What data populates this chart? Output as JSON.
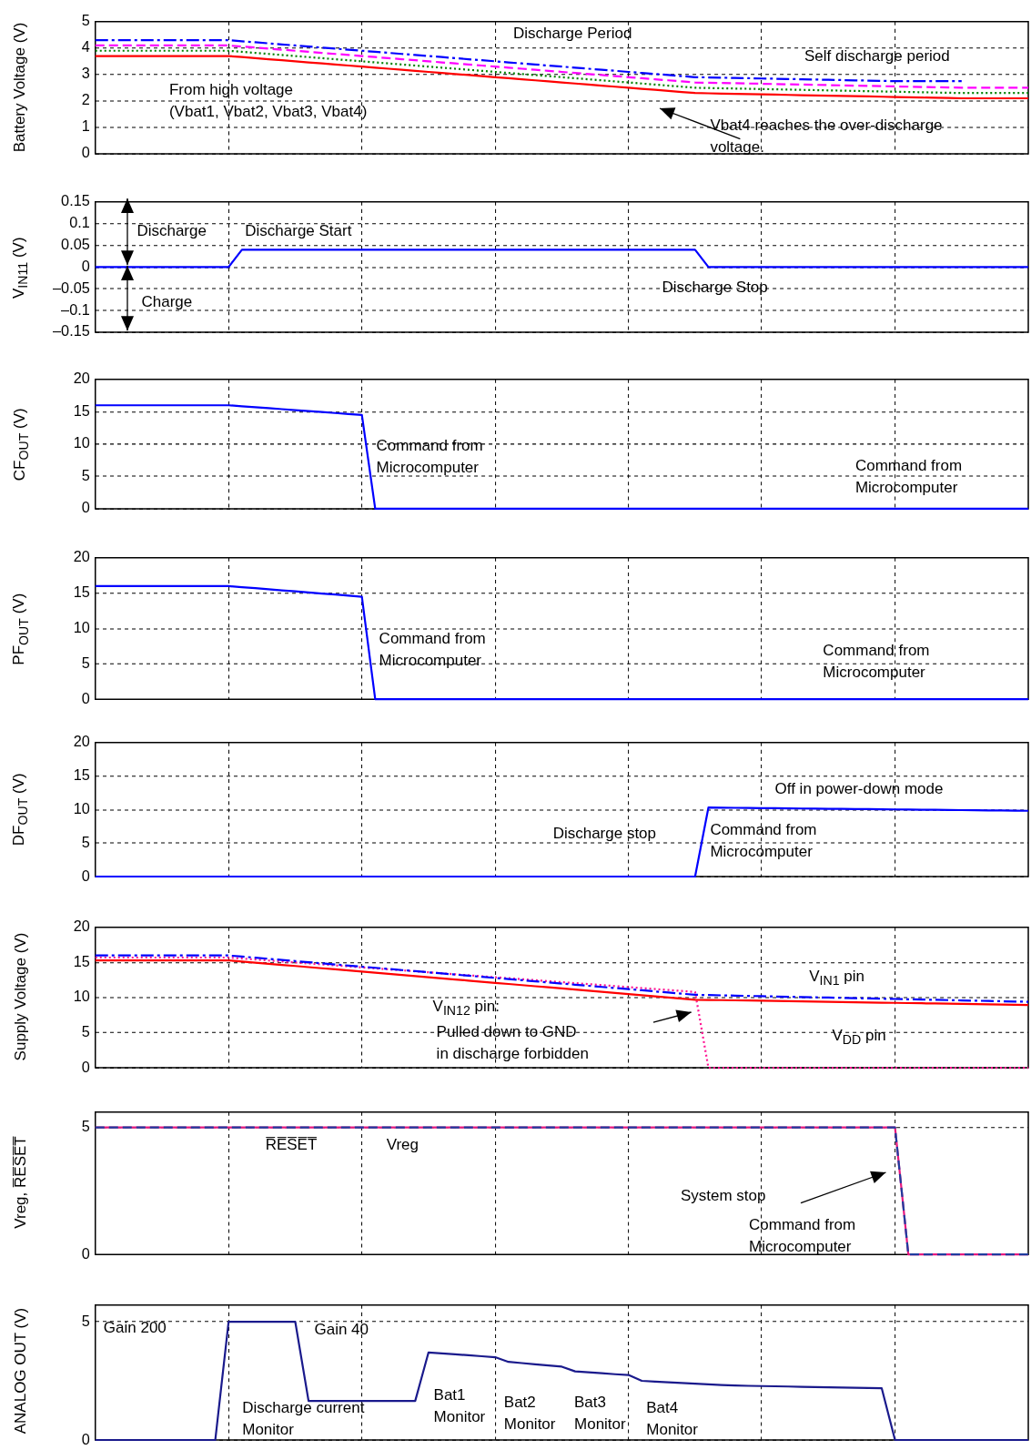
{
  "chart_data": [
    {
      "type": "line",
      "ylabel": "Battery Voltage (V)",
      "ylim": [
        0,
        5
      ],
      "yticks": [
        0,
        1,
        2,
        3,
        4,
        5
      ],
      "grid": true,
      "tick_labels": "y",
      "categories": [
        null,
        null,
        null,
        null,
        null,
        null,
        null,
        null,
        null,
        null,
        null,
        null,
        null,
        null,
        null,
        null,
        null,
        null,
        null,
        null,
        null,
        null,
        null,
        null,
        null,
        null,
        null,
        null,
        null,
        null,
        null,
        null,
        null,
        null,
        null,
        null,
        null,
        null,
        null,
        null,
        null,
        null,
        null,
        null,
        null,
        null,
        null,
        null,
        null,
        null,
        null,
        null,
        null,
        null,
        null,
        null,
        null,
        null,
        null,
        null,
        null,
        null,
        null,
        null,
        null,
        null,
        null,
        null,
        null,
        null,
        null
      ],
      "series": [
        {
          "color": "#0000ff",
          "line_style": "dashdot",
          "values": [
            4.3,
            4.3,
            4.3,
            4.3,
            4.3,
            4.3,
            4.3,
            4.3,
            4.3,
            4.3,
            4.3,
            4.26,
            4.22,
            4.18,
            4.14,
            4.1,
            4.06,
            4.02,
            3.98,
            3.94,
            3.9,
            3.86,
            3.82,
            3.78,
            3.74,
            3.7,
            3.66,
            3.62,
            3.58,
            3.54,
            3.5,
            3.46,
            3.42,
            3.38,
            3.34,
            3.3,
            3.26,
            3.22,
            3.18,
            3.14,
            3.1,
            3.06,
            3.02,
            2.98,
            2.94,
            2.9,
            2.89,
            2.88,
            2.87,
            2.86,
            2.85,
            2.84,
            2.83,
            2.82,
            2.81,
            2.8,
            2.79,
            2.78,
            2.77,
            2.76,
            2.75,
            2.75,
            2.75,
            2.75,
            2.75,
            2.75,
            null,
            null,
            null,
            null,
            null
          ]
        },
        {
          "color": "#ff00ff",
          "line_style": "dashed",
          "values": [
            4.1,
            4.1,
            4.1,
            4.1,
            4.1,
            4.1,
            4.1,
            4.1,
            4.1,
            4.1,
            4.1,
            4.06,
            4.02,
            3.98,
            3.94,
            3.9,
            3.86,
            3.82,
            3.78,
            3.74,
            3.7,
            3.66,
            3.62,
            3.58,
            3.54,
            3.5,
            3.46,
            3.42,
            3.38,
            3.34,
            3.3,
            3.26,
            3.22,
            3.18,
            3.14,
            3.1,
            3.06,
            3.02,
            2.98,
            2.94,
            2.9,
            2.86,
            2.82,
            2.78,
            2.74,
            2.7,
            2.69,
            2.68,
            2.67,
            2.66,
            2.65,
            2.64,
            2.63,
            2.62,
            2.61,
            2.6,
            2.59,
            2.58,
            2.57,
            2.56,
            2.55,
            2.54,
            2.53,
            2.52,
            2.51,
            2.5,
            2.5,
            2.5,
            2.5,
            2.5,
            2.5
          ]
        },
        {
          "color": "#008000",
          "line_style": "dotted",
          "values": [
            3.9,
            3.9,
            3.9,
            3.9,
            3.9,
            3.9,
            3.9,
            3.9,
            3.9,
            3.9,
            3.9,
            3.86,
            3.82,
            3.78,
            3.74,
            3.7,
            3.66,
            3.62,
            3.58,
            3.54,
            3.5,
            3.46,
            3.42,
            3.38,
            3.34,
            3.3,
            3.26,
            3.22,
            3.18,
            3.14,
            3.1,
            3.06,
            3.02,
            2.98,
            2.94,
            2.9,
            2.86,
            2.82,
            2.78,
            2.74,
            2.7,
            2.66,
            2.62,
            2.58,
            2.54,
            2.5,
            2.49,
            2.48,
            2.47,
            2.46,
            2.45,
            2.44,
            2.43,
            2.42,
            2.41,
            2.4,
            2.39,
            2.38,
            2.37,
            2.36,
            2.35,
            2.34,
            2.33,
            2.32,
            2.31,
            2.3,
            2.3,
            2.3,
            2.3,
            2.3,
            2.3
          ]
        },
        {
          "color": "#ff0000",
          "line_style": "solid",
          "values": [
            3.7,
            3.7,
            3.7,
            3.7,
            3.7,
            3.7,
            3.7,
            3.7,
            3.7,
            3.7,
            3.7,
            3.66,
            3.62,
            3.58,
            3.54,
            3.5,
            3.46,
            3.42,
            3.38,
            3.34,
            3.3,
            3.26,
            3.22,
            3.18,
            3.14,
            3.1,
            3.06,
            3.02,
            2.98,
            2.94,
            2.9,
            2.86,
            2.82,
            2.78,
            2.74,
            2.7,
            2.66,
            2.62,
            2.58,
            2.54,
            2.5,
            2.46,
            2.42,
            2.38,
            2.34,
            2.3,
            2.29,
            2.28,
            2.27,
            2.26,
            2.25,
            2.24,
            2.23,
            2.22,
            2.21,
            2.2,
            2.19,
            2.18,
            2.17,
            2.16,
            2.15,
            2.14,
            2.13,
            2.12,
            2.11,
            2.1,
            2.1,
            2.1,
            2.1,
            2.1,
            2.1
          ]
        }
      ],
      "annotations": [
        "Discharge Period",
        "Self discharge period",
        "From high voltage\n(Vbat1, Vbat2, Vbat3, Vbat4)",
        "Vbat4 reaches the over-discharge\nvoltage."
      ]
    },
    {
      "type": "line",
      "ylabel": "V$_{IN11}$ (V)",
      "ylim": [
        -0.15,
        0.15
      ],
      "yticks": [
        {
          "value": -0.15,
          "label": "–0.15"
        },
        {
          "value": -0.1,
          "label": "–0.1"
        },
        {
          "value": -0.05,
          "label": "–0.05"
        },
        0,
        0.05,
        0.1,
        0.15
      ],
      "grid": true,
      "tick_labels": "y",
      "categories": [
        null,
        null,
        null,
        null,
        null,
        null,
        null,
        null,
        null,
        null,
        null,
        null,
        null,
        null,
        null,
        null,
        null,
        null,
        null,
        null,
        null,
        null,
        null,
        null,
        null,
        null,
        null,
        null,
        null,
        null,
        null,
        null,
        null,
        null,
        null,
        null,
        null,
        null,
        null,
        null,
        null,
        null,
        null,
        null,
        null,
        null,
        null,
        null,
        null,
        null,
        null,
        null,
        null,
        null,
        null,
        null,
        null,
        null,
        null,
        null,
        null,
        null,
        null,
        null,
        null,
        null,
        null,
        null,
        null,
        null,
        null
      ],
      "series": [
        {
          "color": "#0000ff",
          "line_style": "solid",
          "values": [
            0,
            0,
            0,
            0,
            0,
            0,
            0,
            0,
            0,
            0,
            0,
            0.04,
            0.04,
            0.04,
            0.04,
            0.04,
            0.04,
            0.04,
            0.04,
            0.04,
            0.04,
            0.04,
            0.04,
            0.04,
            0.04,
            0.04,
            0.04,
            0.04,
            0.04,
            0.04,
            0.04,
            0.04,
            0.04,
            0.04,
            0.04,
            0.04,
            0.04,
            0.04,
            0.04,
            0.04,
            0.04,
            0.04,
            0.04,
            0.04,
            0.04,
            0.04,
            0,
            0,
            0,
            0,
            0,
            0,
            0,
            0,
            0,
            0,
            0,
            0,
            0,
            0,
            0,
            0,
            0,
            0,
            0,
            0,
            0,
            0,
            0,
            0,
            0
          ]
        }
      ],
      "annotations": [
        "Discharge",
        "Discharge Start",
        "Charge",
        "Discharge Stop"
      ]
    },
    {
      "type": "line",
      "ylabel": "CF$_{OUT}$ (V)",
      "ylim": [
        0,
        20
      ],
      "yticks": [
        0,
        5,
        10,
        15,
        20
      ],
      "grid": true,
      "tick_labels": "y",
      "categories": [
        null,
        null,
        null,
        null,
        null,
        null,
        null,
        null,
        null,
        null,
        null,
        null,
        null,
        null,
        null,
        null,
        null,
        null,
        null,
        null,
        null,
        null,
        null,
        null,
        null,
        null,
        null,
        null,
        null,
        null,
        null,
        null,
        null,
        null,
        null,
        null,
        null,
        null,
        null,
        null,
        null,
        null,
        null,
        null,
        null,
        null,
        null,
        null,
        null,
        null,
        null,
        null,
        null,
        null,
        null,
        null,
        null,
        null,
        null,
        null,
        null,
        null,
        null,
        null,
        null,
        null,
        null,
        null,
        null,
        null,
        null
      ],
      "series": [
        {
          "color": "#0000ff",
          "line_style": "solid",
          "values": [
            16,
            16,
            16,
            16,
            16,
            16,
            16,
            16,
            16,
            16,
            16,
            15.85,
            15.7,
            15.55,
            15.4,
            15.25,
            15.1,
            14.95,
            14.8,
            14.65,
            14.5,
            0,
            0,
            0,
            0,
            0,
            0,
            0,
            0,
            0,
            0,
            0,
            0,
            0,
            0,
            0,
            0,
            0,
            0,
            0,
            0,
            0,
            0,
            0,
            0,
            0,
            0,
            0,
            0,
            0,
            0,
            0,
            0,
            0,
            0,
            0,
            0,
            0,
            0,
            0,
            0,
            0,
            0,
            0,
            0,
            0,
            0,
            0,
            0,
            0,
            0
          ]
        }
      ],
      "annotations": [
        "Command from\nMicrocomputer",
        "Command from\nMicrocomputer"
      ]
    },
    {
      "type": "line",
      "ylabel": "PF$_{OUT}$ (V)",
      "ylim": [
        0,
        20
      ],
      "yticks": [
        0,
        5,
        10,
        15,
        20
      ],
      "grid": true,
      "tick_labels": "y",
      "categories": [
        null,
        null,
        null,
        null,
        null,
        null,
        null,
        null,
        null,
        null,
        null,
        null,
        null,
        null,
        null,
        null,
        null,
        null,
        null,
        null,
        null,
        null,
        null,
        null,
        null,
        null,
        null,
        null,
        null,
        null,
        null,
        null,
        null,
        null,
        null,
        null,
        null,
        null,
        null,
        null,
        null,
        null,
        null,
        null,
        null,
        null,
        null,
        null,
        null,
        null,
        null,
        null,
        null,
        null,
        null,
        null,
        null,
        null,
        null,
        null,
        null,
        null,
        null,
        null,
        null,
        null,
        null,
        null,
        null,
        null,
        null
      ],
      "series": [
        {
          "color": "#0000ff",
          "line_style": "solid",
          "values": [
            16,
            16,
            16,
            16,
            16,
            16,
            16,
            16,
            16,
            16,
            16,
            15.85,
            15.7,
            15.55,
            15.4,
            15.25,
            15.1,
            14.95,
            14.8,
            14.65,
            14.5,
            0,
            0,
            0,
            0,
            0,
            0,
            0,
            0,
            0,
            0,
            0,
            0,
            0,
            0,
            0,
            0,
            0,
            0,
            0,
            0,
            0,
            0,
            0,
            0,
            0,
            0,
            0,
            0,
            0,
            0,
            0,
            0,
            0,
            0,
            0,
            0,
            0,
            0,
            0,
            0,
            0,
            0,
            0,
            0,
            0,
            0,
            0,
            0,
            0,
            0
          ]
        }
      ],
      "annotations": [
        "Command from\nMicrocomputer",
        "Command from\nMicrocomputer"
      ]
    },
    {
      "type": "line",
      "ylabel": "DF$_{OUT}$ (V)",
      "ylim": [
        0,
        20
      ],
      "yticks": [
        0,
        5,
        10,
        15,
        20
      ],
      "grid": true,
      "tick_labels": "y",
      "categories": [
        null,
        null,
        null,
        null,
        null,
        null,
        null,
        null,
        null,
        null,
        null,
        null,
        null,
        null,
        null,
        null,
        null,
        null,
        null,
        null,
        null,
        null,
        null,
        null,
        null,
        null,
        null,
        null,
        null,
        null,
        null,
        null,
        null,
        null,
        null,
        null,
        null,
        null,
        null,
        null,
        null,
        null,
        null,
        null,
        null,
        null,
        null,
        null,
        null,
        null,
        null,
        null,
        null,
        null,
        null,
        null,
        null,
        null,
        null,
        null,
        null,
        null,
        null,
        null,
        null,
        null,
        null,
        null,
        null,
        null,
        null
      ],
      "series": [
        {
          "color": "#0000ff",
          "line_style": "solid",
          "values": [
            0,
            0,
            0,
            0,
            0,
            0,
            0,
            0,
            0,
            0,
            0,
            0,
            0,
            0,
            0,
            0,
            0,
            0,
            0,
            0,
            0,
            0,
            0,
            0,
            0,
            0,
            0,
            0,
            0,
            0,
            0,
            0,
            0,
            0,
            0,
            0,
            0,
            0,
            0,
            0,
            0,
            0,
            0,
            0,
            0,
            0,
            10.3,
            10.28,
            10.26,
            10.24,
            10.22,
            10.2,
            10.18,
            10.16,
            10.14,
            10.12,
            10.1,
            10.08,
            10.06,
            10.04,
            10.02,
            10,
            9.98,
            9.96,
            9.94,
            9.92,
            9.9,
            9.88,
            9.86,
            9.84,
            9.82
          ]
        }
      ],
      "annotations": [
        "Off in power-down mode",
        "Discharge stop",
        "Command from\nMicrocomputer"
      ]
    },
    {
      "type": "line",
      "ylabel": "Supply Voltage (V)",
      "ylim": [
        0,
        20
      ],
      "yticks": [
        0,
        5,
        10,
        15,
        20
      ],
      "grid": true,
      "tick_labels": "y",
      "categories": [
        null,
        null,
        null,
        null,
        null,
        null,
        null,
        null,
        null,
        null,
        null,
        null,
        null,
        null,
        null,
        null,
        null,
        null,
        null,
        null,
        null,
        null,
        null,
        null,
        null,
        null,
        null,
        null,
        null,
        null,
        null,
        null,
        null,
        null,
        null,
        null,
        null,
        null,
        null,
        null,
        null,
        null,
        null,
        null,
        null,
        null,
        null,
        null,
        null,
        null,
        null,
        null,
        null,
        null,
        null,
        null,
        null,
        null,
        null,
        null,
        null,
        null,
        null,
        null,
        null,
        null,
        null,
        null,
        null,
        null,
        null
      ],
      "series": [
        {
          "color": "#ff1493",
          "line_style": "dotted",
          "values": [
            15.7,
            15.7,
            15.7,
            15.7,
            15.7,
            15.7,
            15.7,
            15.7,
            15.7,
            15.7,
            15.7,
            15.56,
            15.42,
            15.28,
            15.14,
            15,
            14.86,
            14.72,
            14.58,
            14.44,
            14.3,
            14.16,
            14.02,
            13.88,
            13.74,
            13.6,
            13.46,
            13.32,
            13.18,
            13.04,
            12.9,
            12.76,
            12.62,
            12.48,
            12.34,
            12.2,
            12.06,
            11.92,
            11.78,
            11.64,
            11.5,
            11.36,
            11.22,
            11.08,
            10.94,
            10.8,
            0,
            0,
            0,
            0,
            0,
            0,
            0,
            0,
            0,
            0,
            0,
            0,
            0,
            0,
            0,
            0,
            0,
            0,
            0,
            0,
            0,
            0,
            0,
            0,
            0
          ]
        },
        {
          "color": "#ff0000",
          "line_style": "solid",
          "values": [
            15.3,
            15.3,
            15.3,
            15.3,
            15.3,
            15.3,
            15.3,
            15.3,
            15.3,
            15.3,
            15.3,
            15.14,
            14.98,
            14.82,
            14.66,
            14.5,
            14.34,
            14.18,
            14.02,
            13.86,
            13.7,
            13.54,
            13.38,
            13.22,
            13.06,
            12.9,
            12.74,
            12.58,
            12.42,
            12.26,
            12.1,
            11.94,
            11.78,
            11.62,
            11.46,
            11.3,
            11.14,
            10.98,
            10.82,
            10.66,
            10.5,
            10.34,
            10.18,
            10.02,
            9.86,
            9.7,
            9.67,
            9.64,
            9.61,
            9.58,
            9.55,
            9.52,
            9.49,
            9.46,
            9.43,
            9.4,
            9.37,
            9.34,
            9.31,
            9.28,
            9.25,
            9.22,
            9.19,
            9.16,
            9.13,
            9.1,
            9.07,
            9.04,
            9.01,
            8.98,
            8.95
          ]
        },
        {
          "color": "#0000ff",
          "line_style": "dashdot",
          "values": [
            16,
            16,
            16,
            16,
            16,
            16,
            16,
            16,
            16,
            16,
            16,
            15.84,
            15.68,
            15.52,
            15.36,
            15.2,
            15.04,
            14.88,
            14.72,
            14.56,
            14.4,
            14.24,
            14.08,
            13.92,
            13.76,
            13.6,
            13.44,
            13.28,
            13.12,
            12.96,
            12.8,
            12.64,
            12.48,
            12.32,
            12.16,
            12,
            11.84,
            11.68,
            11.52,
            11.36,
            11.2,
            11.04,
            10.88,
            10.72,
            10.56,
            10.4,
            10.36,
            10.32,
            10.28,
            10.24,
            10.2,
            10.16,
            10.12,
            10.08,
            10.04,
            10,
            9.96,
            9.92,
            9.88,
            9.84,
            9.8,
            9.76,
            9.72,
            9.68,
            9.64,
            9.6,
            9.56,
            9.52,
            9.48,
            9.44,
            9.4
          ]
        }
      ],
      "annotations": [
        "V$_{IN1}$ pin",
        "V$_{IN12}$ pin:",
        "Pulled down to GND\nin discharge forbidden",
        "V$_{DD}$ pin"
      ]
    },
    {
      "type": "line",
      "ylabel": "Vreg, R̅E̅S̅E̅T̅",
      "ylim": [
        0,
        5.6
      ],
      "yticks": [
        0,
        5
      ],
      "grid": true,
      "tick_labels": "y",
      "categories": [
        null,
        null,
        null,
        null,
        null,
        null,
        null,
        null,
        null,
        null,
        null,
        null,
        null,
        null,
        null,
        null,
        null,
        null,
        null,
        null,
        null,
        null,
        null,
        null,
        null,
        null,
        null,
        null,
        null,
        null,
        null,
        null,
        null,
        null,
        null,
        null,
        null,
        null,
        null,
        null,
        null,
        null,
        null,
        null,
        null,
        null,
        null,
        null,
        null,
        null,
        null,
        null,
        null,
        null,
        null,
        null,
        null,
        null,
        null,
        null,
        null,
        null,
        null,
        null,
        null,
        null,
        null,
        null,
        null,
        null,
        null
      ],
      "series": [
        {
          "color": "#e6197f",
          "line_style": "solid",
          "values": [
            5,
            5,
            5,
            5,
            5,
            5,
            5,
            5,
            5,
            5,
            5,
            5,
            5,
            5,
            5,
            5,
            5,
            5,
            5,
            5,
            5,
            5,
            5,
            5,
            5,
            5,
            5,
            5,
            5,
            5,
            5,
            5,
            5,
            5,
            5,
            5,
            5,
            5,
            5,
            5,
            5,
            5,
            5,
            5,
            5,
            5,
            5,
            5,
            5,
            5,
            5,
            5,
            5,
            5,
            5,
            5,
            5,
            5,
            5,
            5,
            5,
            0,
            0,
            0,
            0,
            0,
            0,
            0,
            0,
            0,
            0
          ]
        },
        {
          "color": "#1f3c9e",
          "line_style": "dashed",
          "values": [
            5,
            5,
            5,
            5,
            5,
            5,
            5,
            5,
            5,
            5,
            5,
            5,
            5,
            5,
            5,
            5,
            5,
            5,
            5,
            5,
            5,
            5,
            5,
            5,
            5,
            5,
            5,
            5,
            5,
            5,
            5,
            5,
            5,
            5,
            5,
            5,
            5,
            5,
            5,
            5,
            5,
            5,
            5,
            5,
            5,
            5,
            5,
            5,
            5,
            5,
            5,
            5,
            5,
            5,
            5,
            5,
            5,
            5,
            5,
            5,
            5,
            0,
            0,
            0,
            0,
            0,
            0,
            0,
            0,
            0,
            0
          ]
        }
      ],
      "annotations": [
        "R̅E̅S̅E̅T̅",
        "Vreg",
        "System stop",
        "Command from\nMicrocomputer"
      ]
    },
    {
      "type": "line",
      "ylabel": "ANALOG OUT (V)",
      "ylim": [
        0,
        5.7
      ],
      "yticks": [
        0,
        5
      ],
      "grid": true,
      "tick_labels": "y",
      "categories": [
        null,
        null,
        null,
        null,
        null,
        null,
        null,
        null,
        null,
        null,
        null,
        null,
        null,
        null,
        null,
        null,
        null,
        null,
        null,
        null,
        null,
        null,
        null,
        null,
        null,
        null,
        null,
        null,
        null,
        null,
        null,
        null,
        null,
        null,
        null,
        null,
        null,
        null,
        null,
        null,
        null,
        null,
        null,
        null,
        null,
        null,
        null,
        null,
        null,
        null,
        null,
        null,
        null,
        null,
        null,
        null,
        null,
        null,
        null,
        null,
        null,
        null,
        null,
        null,
        null,
        null,
        null,
        null,
        null,
        null,
        null
      ],
      "series": [
        {
          "color": "#1a1a8c",
          "line_style": "solid",
          "values": [
            0,
            0,
            0,
            0,
            0,
            0,
            0,
            0,
            0,
            0,
            5,
            5,
            5,
            5,
            5,
            5,
            1.65,
            1.65,
            1.65,
            1.65,
            1.65,
            1.65,
            1.65,
            1.65,
            1.65,
            3.7,
            3.66,
            3.62,
            3.58,
            3.54,
            3.5,
            3.3,
            3.25,
            3.2,
            3.15,
            3.1,
            2.9,
            2.86,
            2.82,
            2.78,
            2.75,
            2.5,
            2.47,
            2.44,
            2.41,
            2.38,
            2.35,
            2.32,
            2.3,
            2.29,
            2.28,
            2.27,
            2.26,
            2.25,
            2.24,
            2.23,
            2.22,
            2.21,
            2.2,
            2.19,
            0,
            0,
            0,
            0,
            0,
            0,
            0,
            0,
            0,
            0,
            0
          ]
        }
      ],
      "annotations": [
        "Gain 200",
        "Gain 40",
        "Discharge current\nMonitor",
        "Bat1\nMonitor",
        "Bat2\nMonitor",
        "Bat3\nMonitor",
        "Bat4\nMonitor"
      ]
    }
  ]
}
